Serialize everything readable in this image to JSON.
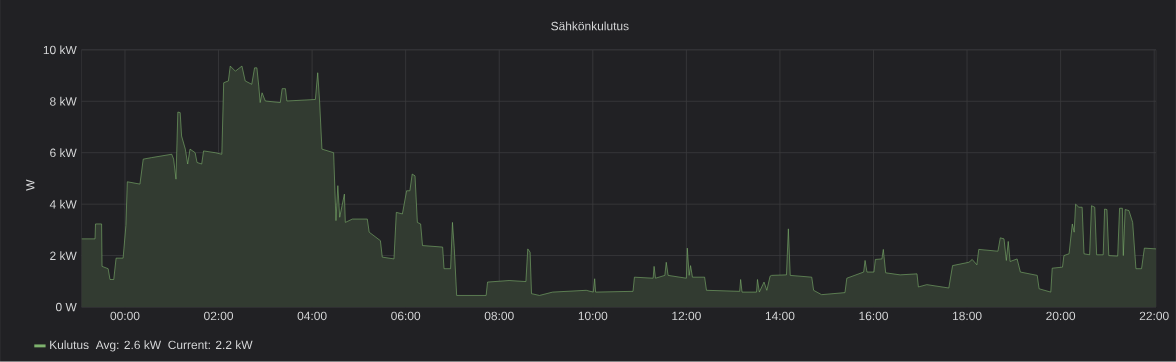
{
  "chart_data": {
    "type": "area",
    "title": "Sähkönkulutus",
    "ylabel": "W",
    "x": [
      -0.93,
      -0.64,
      -0.63,
      -0.5,
      -0.49,
      -0.36,
      -0.32,
      -0.24,
      -0.19,
      -0.04,
      0.02,
      0.05,
      0.32,
      0.39,
      0.57,
      1.0,
      1.04,
      1.09,
      1.13,
      1.18,
      1.21,
      1.29,
      1.34,
      1.39,
      1.5,
      1.54,
      1.64,
      1.68,
      1.93,
      2.07,
      2.11,
      2.21,
      2.25,
      2.36,
      2.5,
      2.57,
      2.71,
      2.77,
      2.82,
      2.86,
      2.89,
      2.93,
      3.0,
      3.32,
      3.36,
      3.43,
      3.46,
      4.07,
      4.12,
      4.16,
      4.21,
      4.46,
      4.51,
      4.55,
      4.59,
      4.64,
      4.69,
      4.71,
      4.86,
      5.18,
      5.22,
      5.46,
      5.5,
      5.75,
      5.8,
      5.93,
      6.02,
      6.09,
      6.14,
      6.2,
      6.25,
      6.32,
      6.36,
      6.79,
      6.82,
      6.96,
      7.0,
      7.04,
      7.09,
      7.72,
      7.75,
      8.21,
      8.57,
      8.61,
      8.66,
      8.69,
      8.86,
      9.14,
      9.86,
      10.01,
      10.04,
      10.06,
      10.86,
      10.89,
      11.29,
      11.31,
      11.34,
      11.54,
      11.57,
      11.61,
      12.0,
      12.02,
      12.06,
      12.09,
      12.13,
      12.39,
      12.43,
      13.14,
      13.16,
      13.19,
      13.5,
      13.52,
      13.56,
      13.66,
      13.72,
      13.79,
      13.82,
      14.14,
      14.18,
      14.22,
      14.68,
      14.72,
      14.89,
      15.39,
      15.43,
      15.79,
      15.82,
      15.86,
      16.01,
      16.04,
      16.18,
      16.21,
      16.26,
      16.57,
      16.93,
      16.96,
      17.14,
      17.61,
      17.69,
      18.04,
      18.11,
      18.21,
      18.25,
      18.66,
      18.71,
      18.79,
      18.84,
      18.88,
      18.92,
      19.07,
      19.14,
      19.5,
      19.54,
      19.79,
      19.82,
      20.04,
      20.07,
      20.18,
      20.25,
      20.29,
      20.32,
      20.39,
      20.46,
      20.5,
      20.62,
      20.66,
      20.73,
      20.77,
      20.91,
      20.94,
      20.99,
      21.03,
      21.22,
      21.26,
      21.32,
      21.34,
      21.38,
      21.46,
      21.54,
      21.61,
      21.73,
      21.79,
      22.04
    ],
    "series": [
      {
        "name": "Kulutus",
        "color": "#7eb26d",
        "values": [
          2.65,
          2.65,
          3.23,
          3.23,
          1.58,
          1.49,
          1.07,
          1.07,
          1.9,
          1.9,
          3.17,
          4.87,
          4.78,
          5.75,
          5.81,
          5.94,
          5.75,
          4.97,
          7.58,
          7.56,
          6.65,
          6.14,
          5.56,
          6.14,
          6.0,
          5.62,
          5.56,
          6.07,
          6.0,
          5.94,
          8.72,
          8.79,
          9.37,
          9.17,
          9.37,
          8.79,
          8.66,
          9.3,
          9.3,
          8.59,
          7.95,
          8.33,
          8.01,
          7.95,
          8.49,
          8.49,
          8.01,
          8.07,
          9.11,
          8.01,
          6.14,
          6.0,
          3.36,
          4.72,
          3.49,
          3.94,
          4.39,
          3.29,
          3.42,
          3.42,
          2.91,
          2.58,
          1.94,
          1.87,
          3.68,
          3.62,
          4.52,
          4.52,
          5.17,
          5.1,
          3.29,
          3.23,
          2.39,
          2.33,
          1.49,
          1.49,
          3.29,
          2.26,
          0.45,
          0.45,
          0.97,
          1.03,
          0.99,
          2.26,
          2.13,
          0.52,
          0.45,
          0.58,
          0.65,
          0.58,
          1.1,
          0.58,
          0.61,
          1.16,
          1.12,
          1.58,
          1.12,
          1.23,
          1.74,
          1.23,
          1.12,
          2.29,
          1.23,
          1.61,
          1.16,
          1.16,
          0.65,
          0.61,
          1.07,
          0.58,
          0.58,
          1.07,
          0.58,
          0.97,
          0.65,
          1.2,
          1.23,
          1.25,
          3.04,
          1.23,
          1.16,
          0.65,
          0.48,
          0.56,
          1.12,
          1.36,
          1.81,
          1.36,
          1.36,
          1.85,
          1.87,
          2.24,
          1.33,
          1.25,
          1.29,
          0.78,
          0.87,
          0.74,
          1.61,
          1.74,
          1.85,
          1.64,
          2.24,
          2.17,
          2.69,
          2.65,
          1.81,
          2.55,
          1.77,
          1.87,
          1.36,
          1.23,
          0.71,
          0.58,
          1.51,
          1.55,
          2.0,
          2.07,
          3.23,
          2.91,
          4.0,
          3.88,
          3.88,
          2.07,
          2.03,
          3.94,
          3.88,
          2.03,
          2.03,
          3.81,
          3.79,
          2.0,
          1.98,
          3.84,
          3.84,
          2.0,
          3.79,
          3.75,
          3.29,
          1.49,
          1.49,
          2.29,
          2.26
        ]
      }
    ],
    "xlim": [
      -0.93,
      22.04
    ],
    "ylim": [
      0,
      10
    ],
    "xticks": [
      {
        "value": 0,
        "label": "00:00"
      },
      {
        "value": 2,
        "label": "02:00"
      },
      {
        "value": 4,
        "label": "04:00"
      },
      {
        "value": 6,
        "label": "06:00"
      },
      {
        "value": 8,
        "label": "08:00"
      },
      {
        "value": 10,
        "label": "10:00"
      },
      {
        "value": 12,
        "label": "12:00"
      },
      {
        "value": 14,
        "label": "14:00"
      },
      {
        "value": 16,
        "label": "16:00"
      },
      {
        "value": 18,
        "label": "18:00"
      },
      {
        "value": 20,
        "label": "20:00"
      },
      {
        "value": 22,
        "label": "22:00"
      }
    ],
    "yticks": [
      {
        "value": 0,
        "label": "0 W"
      },
      {
        "value": 2,
        "label": "2 kW"
      },
      {
        "value": 4,
        "label": "4 kW"
      },
      {
        "value": 6,
        "label": "6 kW"
      },
      {
        "value": 8,
        "label": "8 kW"
      },
      {
        "value": 10,
        "label": "10 kW"
      }
    ],
    "grid": true,
    "legend": "bottom left",
    "marker": "none",
    "line_style": "solid",
    "annotations": [
      "Avg: 2.6 kW",
      "Current: 2.2 kW"
    ]
  }
}
